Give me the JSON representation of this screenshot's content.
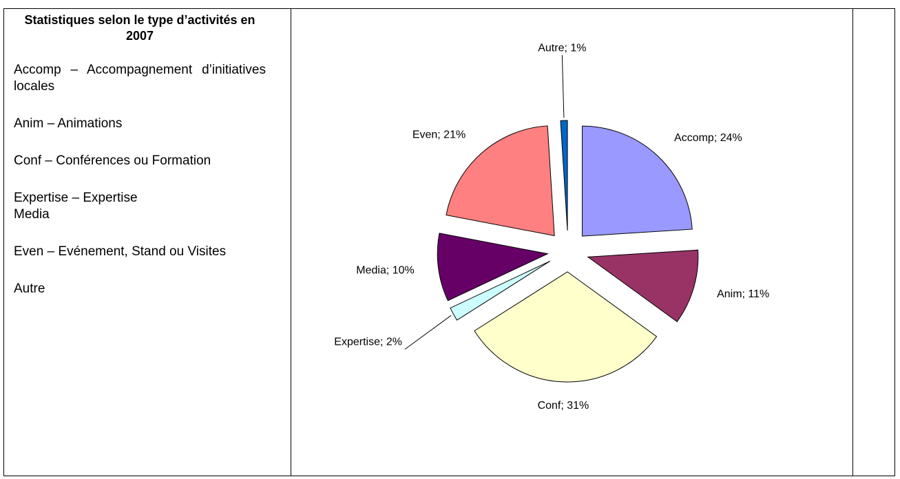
{
  "sidebar": {
    "title": "Statistiques selon le type d’activités en 2007",
    "paragraphs": [
      [
        "Accomp – Accompagnement d’initiatives locales"
      ],
      [
        "Anim – Animations"
      ],
      [
        "Conf – Conférences ou Formation"
      ],
      [
        "Expertise – Expertise",
        "Media"
      ],
      [
        "Even – Evénement, Stand ou Visites"
      ],
      [
        "Autre"
      ]
    ]
  },
  "chart_data": {
    "type": "pie",
    "values": [
      24,
      11,
      31,
      2,
      10,
      21,
      1
    ],
    "value_labels": [
      "Accomp; 24%",
      "Anim; 11%",
      "Conf; 31%",
      "Expertise; 2%",
      "Media; 10%",
      "Even; 21%",
      "Autre; 1%"
    ],
    "colors": [
      "#9999ff",
      "#993366",
      "#ffffcc",
      "#ccffff",
      "#660066",
      "#ff8080",
      "#0066cc"
    ]
  }
}
